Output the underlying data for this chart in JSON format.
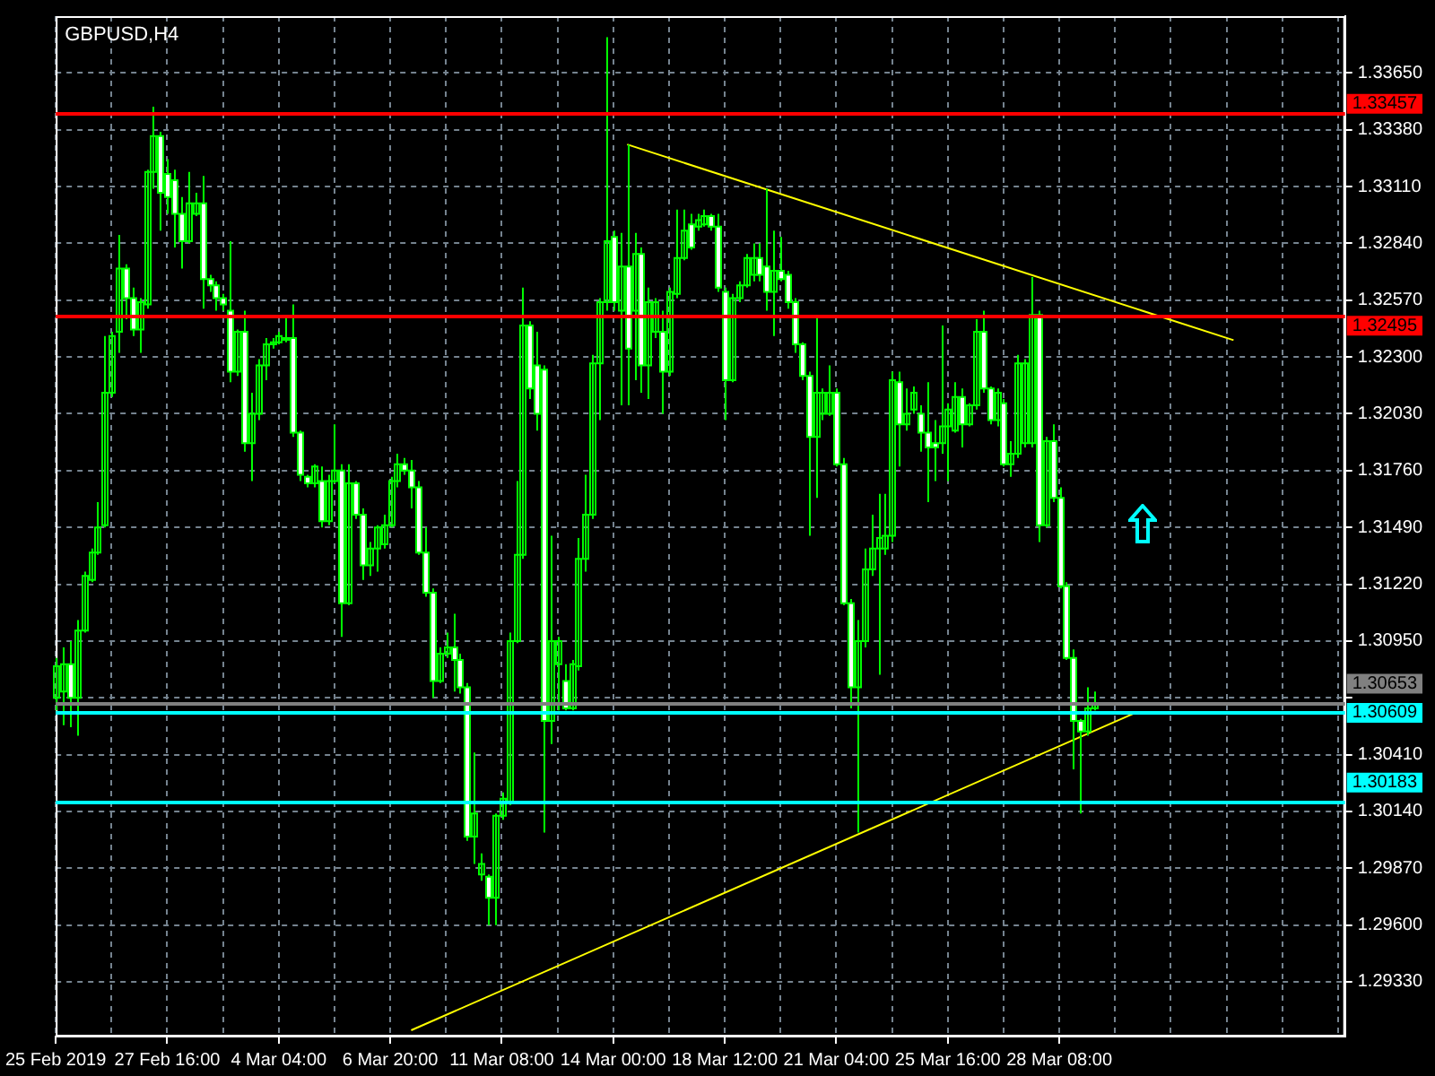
{
  "chart_data": {
    "type": "candlestick",
    "title": "GBPUSD,H4",
    "colors": [
      "#00ff00",
      "#00ff00",
      "#ffffff",
      "#00ff00",
      "#00ff00",
      "#00ff00",
      "#00ff00",
      "#00ff00",
      "#00ff00",
      "#00ff00",
      "#ffffff",
      "#ffffff",
      "#00ff00",
      "#00ff00",
      "#00ff00",
      "#ffffff",
      "#ffffff",
      "#ffffff",
      "#ffffff",
      "#00ff00",
      "#00ff00",
      "#ffffff",
      "#ffffff",
      "#ffffff",
      "#ffffff",
      "#ffffff",
      "#00ff00",
      "#ffffff",
      "#00ff00",
      "#00ff00",
      "#00ff00",
      "#00ff00",
      "#00ff00",
      "#00ff00",
      "#ffffff",
      "#ffffff",
      "#ffffff",
      "#00ff00",
      "#ffffff",
      "#00ff00",
      "#00ff00",
      "#ffffff",
      "#00ff00",
      "#ffffff",
      "#ffffff",
      "#00ff00",
      "#00ff00",
      "#00ff00",
      "#00ff00",
      "#00ff00",
      "#ffffff",
      "#ffffff",
      "#ffffff",
      "#ffffff",
      "#ffffff",
      "#00ff00",
      "#00ff00",
      "#ffffff",
      "#ffffff",
      "#ffffff",
      "#00ff00",
      "#00ff00",
      "#ffffff",
      "#00ff00",
      "#00ff00",
      "#00ff00",
      "#00ff00",
      "#00ff00",
      "#ffffff",
      "#ffffff",
      "#ffffff",
      "#00ff00",
      "#00ff00",
      "#ffffff",
      "#00ff00",
      "#00ff00",
      "#00ff00",
      "#00ff00",
      "#00ff00",
      "#00ff00",
      "#ffffff",
      "#00ff00",
      "#ffffff",
      "#00ff00",
      "#ffffff",
      "#00ff00",
      "#00ff00",
      "#ffffff",
      "#00ff00",
      "#00ff00",
      "#00ff00",
      "#ffffff",
      "#00ff00",
      "#00ff00",
      "#ffffff",
      "#ffffff",
      "#ffffff",
      "#00ff00",
      "#00ff00",
      "#00ff00",
      "#00ff00",
      "#ffffff",
      "#ffffff",
      "#00ff00",
      "#ffffff",
      "#ffffff",
      "#ffffff",
      "#ffffff",
      "#ffffff",
      "#00ff00",
      "#00ff00",
      "#00ff00",
      "#ffffff",
      "#ffffff",
      "#ffffff",
      "#00ff00",
      "#00ff00",
      "#00ff00",
      "#00ff00",
      "#00ff00",
      "#00ff00",
      "#ffffff",
      "#00ff00",
      "#00ff00",
      "#ffffff",
      "#ffffff",
      "#ffffff",
      "#00ff00",
      "#00ff00",
      "#00ff00",
      "#ffffff",
      "#00ff00",
      "#00ff00",
      "#ffffff",
      "#ffffff",
      "#00ff00",
      "#ffffff",
      "#00ff00",
      "#00ff00",
      "#00ff00",
      "#00ff00",
      "#ffffff",
      "#00ff00",
      "#ffffff",
      "#ffffff",
      "#ffffff",
      "#ffffff",
      "#ffffff",
      "#00ff00",
      "#00ff00",
      null,
      null,
      null,
      null,
      null,
      null,
      null,
      null,
      null,
      null,
      null,
      null,
      null,
      null,
      null,
      null,
      null,
      null,
      null,
      null,
      null,
      null,
      null,
      null,
      null,
      null,
      null,
      null,
      null,
      null,
      null,
      null,
      null,
      null,
      null,
      null
    ],
    "grid": true,
    "legend": false,
    "categories": [
      "25 Feb 2019",
      null,
      null,
      null,
      null,
      null,
      null,
      null,
      null,
      null,
      null,
      null,
      null,
      null,
      null,
      null,
      "27 Feb 16:00",
      null,
      null,
      null,
      null,
      null,
      null,
      null,
      null,
      null,
      null,
      null,
      null,
      null,
      null,
      null,
      "4 Mar 04:00",
      null,
      null,
      null,
      null,
      null,
      null,
      null,
      null,
      null,
      null,
      null,
      null,
      null,
      null,
      null,
      "6 Mar 20:00",
      null,
      null,
      null,
      null,
      null,
      null,
      null,
      null,
      null,
      null,
      null,
      null,
      null,
      null,
      null,
      "11 Mar 08:00",
      null,
      null,
      null,
      null,
      null,
      null,
      null,
      null,
      null,
      null,
      null,
      null,
      null,
      null,
      null,
      "14 Mar 00:00",
      null,
      null,
      null,
      null,
      null,
      null,
      null,
      null,
      null,
      null,
      null,
      null,
      null,
      null,
      null,
      "18 Mar 12:00",
      null,
      null,
      null,
      null,
      null,
      null,
      null,
      null,
      null,
      null,
      null,
      null,
      null,
      null,
      null,
      "21 Mar 04:00",
      null,
      null,
      null,
      null,
      null,
      null,
      null,
      null,
      null,
      null,
      null,
      null,
      null,
      null,
      null,
      "25 Mar 16:00",
      null,
      null,
      null,
      null,
      null,
      null,
      null,
      null,
      null,
      null,
      null,
      null,
      null,
      null,
      null,
      "28 Mar 08:00",
      null,
      null,
      null,
      null,
      null,
      null,
      null,
      null,
      null,
      null,
      null,
      null,
      null,
      null,
      null,
      null,
      null,
      null,
      null,
      null,
      null,
      null,
      null,
      null,
      null,
      null,
      null,
      null,
      null,
      null,
      null,
      null,
      null,
      null,
      null,
      null,
      null,
      null,
      null,
      null,
      null
    ],
    "ohlc": [
      [
        1.3068,
        1.3087,
        1.3062,
        1.3083
      ],
      [
        1.3071,
        1.3092,
        1.3055,
        1.3084
      ],
      [
        1.3084,
        1.3095,
        1.3054,
        1.3068
      ],
      [
        1.3068,
        1.3105,
        1.305,
        1.31
      ],
      [
        1.31,
        1.3128,
        1.3099,
        1.3126
      ],
      [
        1.3124,
        1.3139,
        1.3123,
        1.3137
      ],
      [
        1.3137,
        1.3161,
        1.3136,
        1.3149
      ],
      [
        1.315,
        1.324,
        1.3149,
        1.3213
      ],
      [
        1.3213,
        1.3242,
        1.3211,
        1.324
      ],
      [
        1.3242,
        1.3288,
        1.3232,
        1.3272
      ],
      [
        1.3272,
        1.3274,
        1.3248,
        1.3258
      ],
      [
        1.3258,
        1.3263,
        1.324,
        1.3243
      ],
      [
        1.3243,
        1.3258,
        1.3232,
        1.3256
      ],
      [
        1.3255,
        1.3319,
        1.3253,
        1.3318
      ],
      [
        1.3318,
        1.3349,
        1.331,
        1.3335
      ],
      [
        1.3335,
        1.3337,
        1.329,
        1.3308
      ],
      [
        1.3317,
        1.3324,
        1.3298,
        1.3306
      ],
      [
        1.3314,
        1.3319,
        1.3282,
        1.3298
      ],
      [
        1.3298,
        1.3306,
        1.3272,
        1.3285
      ],
      [
        1.3285,
        1.3318,
        1.3284,
        1.3303
      ],
      [
        1.3298,
        1.3308,
        1.3297,
        1.3303
      ],
      [
        1.3303,
        1.3316,
        1.3253,
        1.3267
      ],
      [
        1.3267,
        1.3269,
        1.3261,
        1.3264
      ],
      [
        1.3264,
        1.3266,
        1.3252,
        1.3258
      ],
      [
        1.3258,
        1.326,
        1.3252,
        1.3255
      ],
      [
        1.3252,
        1.3285,
        1.3218,
        1.3223
      ],
      [
        1.3223,
        1.3243,
        1.3221,
        1.3242
      ],
      [
        1.3242,
        1.3252,
        1.3185,
        1.3189
      ],
      [
        1.3189,
        1.3213,
        1.3171,
        1.3203
      ],
      [
        1.3203,
        1.3229,
        1.32,
        1.3226
      ],
      [
        1.3226,
        1.3239,
        1.3219,
        1.3236
      ],
      [
        1.3236,
        1.3239,
        1.3234,
        1.3237
      ],
      [
        1.3237,
        1.3242,
        1.3236,
        1.324
      ],
      [
        1.3239,
        1.325,
        1.3237,
        1.3239
      ],
      [
        1.3239,
        1.3255,
        1.3192,
        1.3194
      ],
      [
        1.3194,
        1.3195,
        1.3171,
        1.3174
      ],
      [
        1.3173,
        1.3174,
        1.3168,
        1.317
      ],
      [
        1.317,
        1.3179,
        1.3168,
        1.3178
      ],
      [
        1.3171,
        1.3178,
        1.3149,
        1.3152
      ],
      [
        1.3152,
        1.3174,
        1.315,
        1.3171
      ],
      [
        1.3171,
        1.3198,
        1.317,
        1.3176
      ],
      [
        1.3176,
        1.3179,
        1.3097,
        1.3113
      ],
      [
        1.3113,
        1.3179,
        1.3112,
        1.317
      ],
      [
        1.317,
        1.3171,
        1.3153,
        1.3155
      ],
      [
        1.3155,
        1.3158,
        1.3124,
        1.3131
      ],
      [
        1.3131,
        1.3142,
        1.3126,
        1.3139
      ],
      [
        1.3139,
        1.315,
        1.3128,
        1.3149
      ],
      [
        1.3141,
        1.3155,
        1.3139,
        1.315
      ],
      [
        1.315,
        1.3173,
        1.3149,
        1.3171
      ],
      [
        1.3171,
        1.3184,
        1.3168,
        1.3179
      ],
      [
        1.3179,
        1.3182,
        1.3174,
        1.3176
      ],
      [
        1.3176,
        1.3181,
        1.3158,
        1.3168
      ],
      [
        1.3168,
        1.3171,
        1.3136,
        1.3137
      ],
      [
        1.3137,
        1.3149,
        1.3116,
        1.3118
      ],
      [
        1.3118,
        1.312,
        1.3068,
        1.3076
      ],
      [
        1.3076,
        1.3092,
        1.3075,
        1.3089
      ],
      [
        1.3089,
        1.3099,
        1.3087,
        1.3092
      ],
      [
        1.3092,
        1.3108,
        1.3071,
        1.3086
      ],
      [
        1.3086,
        1.3089,
        1.307,
        1.3073
      ],
      [
        1.3073,
        1.3075,
        1.3,
        1.3002
      ],
      [
        1.3002,
        1.3042,
        1.2989,
        1.3013
      ],
      [
        1.2984,
        1.2994,
        1.2981,
        1.2989
      ],
      [
        1.2983,
        1.2984,
        1.296,
        1.2973
      ],
      [
        1.2973,
        1.3013,
        1.296,
        1.3012
      ],
      [
        1.3012,
        1.3023,
        1.301,
        1.302
      ],
      [
        1.3018,
        1.3099,
        1.3017,
        1.3095
      ],
      [
        1.3095,
        1.3171,
        1.3094,
        1.3136
      ],
      [
        1.3136,
        1.3263,
        1.3134,
        1.3245
      ],
      [
        1.3245,
        1.3247,
        1.321,
        1.3215
      ],
      [
        1.3226,
        1.3242,
        1.3195,
        1.3203
      ],
      [
        1.3224,
        1.3226,
        1.3004,
        1.3057
      ],
      [
        1.3057,
        1.3145,
        1.3046,
        1.3095
      ],
      [
        1.3084,
        1.3097,
        1.3062,
        1.3095
      ],
      [
        1.3076,
        1.3084,
        1.3062,
        1.3063
      ],
      [
        1.3063,
        1.3086,
        1.3062,
        1.3084
      ],
      [
        1.3083,
        1.3144,
        1.3081,
        1.3134
      ],
      [
        1.3134,
        1.3174,
        1.3128,
        1.3155
      ],
      [
        1.3155,
        1.3231,
        1.3153,
        1.3227
      ],
      [
        1.3227,
        1.3258,
        1.32,
        1.3256
      ],
      [
        1.3256,
        1.3382,
        1.3252,
        1.3285
      ],
      [
        1.3287,
        1.329,
        1.3252,
        1.3256
      ],
      [
        1.3252,
        1.3289,
        1.3207,
        1.3273
      ],
      [
        1.3273,
        1.3331,
        1.3207,
        1.3234
      ],
      [
        1.3252,
        1.3289,
        1.3219,
        1.3279
      ],
      [
        1.3279,
        1.3282,
        1.3213,
        1.3226
      ],
      [
        1.3226,
        1.3263,
        1.321,
        1.3256
      ],
      [
        1.3242,
        1.3258,
        1.3239,
        1.3256
      ],
      [
        1.3242,
        1.3252,
        1.3203,
        1.3223
      ],
      [
        1.3223,
        1.3263,
        1.3221,
        1.3261
      ],
      [
        1.326,
        1.33,
        1.3258,
        1.3277
      ],
      [
        1.3277,
        1.33,
        1.3276,
        1.329
      ],
      [
        1.3293,
        1.3298,
        1.3281,
        1.3282
      ],
      [
        1.3292,
        1.3298,
        1.329,
        1.3295
      ],
      [
        1.3293,
        1.33,
        1.3292,
        1.3297
      ],
      [
        1.3297,
        1.3298,
        1.329,
        1.3292
      ],
      [
        1.3292,
        1.3298,
        1.3261,
        1.3263
      ],
      [
        1.3261,
        1.3263,
        1.32,
        1.3219
      ],
      [
        1.3219,
        1.326,
        1.3218,
        1.3258
      ],
      [
        1.3258,
        1.3266,
        1.3256,
        1.3264
      ],
      [
        1.3264,
        1.3279,
        1.3263,
        1.3277
      ],
      [
        1.3269,
        1.3284,
        1.3266,
        1.3277
      ],
      [
        1.3277,
        1.3284,
        1.3266,
        1.3269
      ],
      [
        1.3273,
        1.331,
        1.3252,
        1.3261
      ],
      [
        1.3261,
        1.329,
        1.324,
        1.3271
      ],
      [
        1.3271,
        1.3287,
        1.3266,
        1.3267
      ],
      [
        1.3269,
        1.3271,
        1.3253,
        1.3256
      ],
      [
        1.3256,
        1.3258,
        1.3232,
        1.3236
      ],
      [
        1.3236,
        1.3237,
        1.3219,
        1.3221
      ],
      [
        1.3221,
        1.3223,
        1.3145,
        1.3192
      ],
      [
        1.3192,
        1.325,
        1.3163,
        1.3213
      ],
      [
        1.3203,
        1.3215,
        1.32,
        1.3213
      ],
      [
        1.3203,
        1.3226,
        1.3202,
        1.3213
      ],
      [
        1.3213,
        1.3215,
        1.3178,
        1.3179
      ],
      [
        1.3179,
        1.3182,
        1.3112,
        1.3113
      ],
      [
        1.3113,
        1.3115,
        1.3063,
        1.3073
      ],
      [
        1.3073,
        1.3105,
        1.3004,
        1.3095
      ],
      [
        1.3095,
        1.3139,
        1.3092,
        1.3129
      ],
      [
        1.3129,
        1.3155,
        1.3126,
        1.3139
      ],
      [
        1.3139,
        1.3165,
        1.3079,
        1.3144
      ],
      [
        1.3139,
        1.3165,
        1.3136,
        1.3145
      ],
      [
        1.3145,
        1.3223,
        1.3142,
        1.3219
      ],
      [
        1.3218,
        1.3223,
        1.3178,
        1.3198
      ],
      [
        1.3198,
        1.3215,
        1.3195,
        1.3203
      ],
      [
        1.3205,
        1.3216,
        1.3203,
        1.3213
      ],
      [
        1.3203,
        1.3207,
        1.3185,
        1.3194
      ],
      [
        1.3194,
        1.3218,
        1.3161,
        1.3187
      ],
      [
        1.3189,
        1.32,
        1.3171,
        1.3187
      ],
      [
        1.3189,
        1.3245,
        1.3184,
        1.3197
      ],
      [
        1.3197,
        1.3208,
        1.3171,
        1.3205
      ],
      [
        1.3195,
        1.3218,
        1.3194,
        1.3211
      ],
      [
        1.3211,
        1.3215,
        1.3187,
        1.3198
      ],
      [
        1.3198,
        1.3208,
        1.3197,
        1.3207
      ],
      [
        1.3207,
        1.3248,
        1.3205,
        1.3242
      ],
      [
        1.3242,
        1.3252,
        1.3213,
        1.3215
      ],
      [
        1.3215,
        1.3216,
        1.3198,
        1.32
      ],
      [
        1.32,
        1.3215,
        1.3197,
        1.3213
      ],
      [
        1.3208,
        1.321,
        1.3178,
        1.3179
      ],
      [
        1.3179,
        1.319,
        1.3173,
        1.3184
      ],
      [
        1.3184,
        1.3231,
        1.3182,
        1.3227
      ],
      [
        1.3189,
        1.3229,
        1.3187,
        1.3227
      ],
      [
        1.3189,
        1.3268,
        1.3187,
        1.325
      ],
      [
        1.325,
        1.3252,
        1.3142,
        1.315
      ],
      [
        1.315,
        1.3192,
        1.3149,
        1.319
      ],
      [
        1.319,
        1.3198,
        1.3161,
        1.3163
      ],
      [
        1.3163,
        1.3168,
        1.312,
        1.3121
      ],
      [
        1.3121,
        1.3123,
        1.3086,
        1.3087
      ],
      [
        1.3087,
        1.3091,
        1.3034,
        1.3057
      ],
      [
        1.3057,
        1.3058,
        1.3013,
        1.3052
      ],
      [
        1.3052,
        1.3073,
        1.305,
        1.3063
      ],
      [
        1.3063,
        1.3071,
        1.3062,
        1.30653
      ],
      null,
      null,
      null,
      null,
      null,
      null,
      null,
      null,
      null,
      null,
      null,
      null,
      null,
      null,
      null,
      null,
      null,
      null,
      null,
      null,
      null,
      null,
      null,
      null,
      null,
      null,
      null,
      null,
      null,
      null,
      null,
      null,
      null,
      null,
      null,
      null
    ],
    "series": [
      {
        "type": "line",
        "color": "#ffff00",
        "values": [
          null,
          null,
          null,
          null,
          null,
          null,
          null,
          null,
          null,
          null,
          null,
          null,
          null,
          null,
          null,
          null,
          null,
          null,
          null,
          null,
          null,
          null,
          null,
          null,
          null,
          null,
          null,
          null,
          null,
          null,
          null,
          null,
          null,
          null,
          null,
          null,
          null,
          null,
          null,
          null,
          null,
          null,
          null,
          null,
          null,
          null,
          null,
          null,
          null,
          null,
          null,
          null,
          null,
          null,
          null,
          null,
          null,
          null,
          null,
          null,
          null,
          null,
          null,
          null,
          null,
          null,
          null,
          null,
          null,
          null,
          null,
          null,
          null,
          null,
          null,
          null,
          null,
          null,
          null,
          null,
          null,
          null,
          1.3331,
          null,
          null,
          null,
          null,
          null,
          null,
          null,
          null,
          null,
          null,
          null,
          null,
          null,
          null,
          null,
          null,
          null,
          null,
          null,
          null,
          null,
          null,
          null,
          null,
          null,
          null,
          null,
          null,
          null,
          null,
          null,
          null,
          null,
          null,
          null,
          null,
          null,
          null,
          null,
          null,
          null,
          null,
          null,
          null,
          null,
          null,
          null,
          null,
          null,
          null,
          null,
          null,
          null,
          null,
          null,
          null,
          null,
          null,
          null,
          null,
          null,
          null,
          null,
          null,
          null,
          null,
          null,
          null,
          null,
          null,
          null,
          null,
          null,
          null,
          null,
          null,
          null,
          null,
          null,
          null,
          null,
          null,
          null,
          null,
          null,
          null,
          1.3238,
          null,
          null,
          null,
          null,
          null,
          null,
          null,
          null,
          null,
          null,
          null,
          null,
          null,
          null,
          null,
          null
        ]
      },
      {
        "type": "line",
        "color": "#ffff00",
        "values": [
          null,
          null,
          null,
          null,
          null,
          null,
          null,
          null,
          null,
          null,
          null,
          null,
          null,
          null,
          null,
          null,
          null,
          null,
          null,
          null,
          null,
          null,
          null,
          null,
          null,
          null,
          null,
          null,
          null,
          null,
          null,
          null,
          null,
          null,
          null,
          null,
          null,
          null,
          null,
          null,
          null,
          null,
          null,
          null,
          null,
          null,
          null,
          null,
          null,
          null,
          null,
          1.291,
          null,
          null,
          null,
          null,
          null,
          null,
          null,
          null,
          null,
          null,
          null,
          null,
          null,
          null,
          null,
          null,
          null,
          null,
          null,
          null,
          null,
          null,
          null,
          null,
          null,
          null,
          null,
          null,
          null,
          null,
          null,
          null,
          null,
          null,
          null,
          null,
          null,
          null,
          null,
          null,
          null,
          null,
          null,
          null,
          null,
          null,
          null,
          null,
          null,
          null,
          null,
          null,
          null,
          null,
          null,
          null,
          null,
          null,
          null,
          null,
          null,
          null,
          null,
          null,
          null,
          null,
          null,
          null,
          null,
          null,
          null,
          null,
          null,
          null,
          null,
          null,
          null,
          null,
          null,
          null,
          null,
          null,
          null,
          null,
          null,
          null,
          null,
          null,
          null,
          null,
          null,
          null,
          null,
          null,
          null,
          null,
          null,
          null,
          null,
          null,
          null,
          null,
          null,
          1.3061,
          null,
          null,
          null,
          null,
          null,
          null,
          null,
          null,
          null,
          null,
          null,
          null,
          null,
          null,
          null,
          null,
          null,
          null,
          null,
          null,
          null,
          null,
          null,
          null,
          null,
          null,
          null,
          null,
          null,
          null
        ]
      }
    ],
    "ref_lines": [
      {
        "axis": "y",
        "value": 1.33457,
        "label": "1.33457",
        "color": "#ff0000"
      },
      {
        "axis": "y",
        "value": 1.32495,
        "label": "1.32495",
        "color": "#ff0000"
      },
      {
        "axis": "y",
        "value": 1.30653,
        "label": "1.30653",
        "color": "#808080"
      },
      {
        "axis": "y",
        "value": 1.30609,
        "label": "1.30609",
        "color": "#00ffff"
      },
      {
        "axis": "y",
        "value": 1.30183,
        "label": "1.30183",
        "color": "#00ffff"
      }
    ],
    "ylim": [
      1.2907,
      1.3392
    ],
    "yticks": [
      {
        "value": 1.3365,
        "label": "1.33650"
      },
      {
        "value": 1.3338,
        "label": "1.33380"
      },
      {
        "value": 1.3311,
        "label": "1.33110"
      },
      {
        "value": 1.3284,
        "label": "1.32840"
      },
      {
        "value": 1.3257,
        "label": "1.32570"
      },
      {
        "value": 1.323,
        "label": "1.32300"
      },
      {
        "value": 1.3203,
        "label": "1.32030"
      },
      {
        "value": 1.3176,
        "label": "1.31760"
      },
      {
        "value": 1.3149,
        "label": "1.31490"
      },
      {
        "value": 1.3122,
        "label": "1.31220"
      },
      {
        "value": 1.3095,
        "label": "1.30950"
      },
      {
        "value": 1.3068,
        "label": null
      },
      {
        "value": 1.3041,
        "label": "1.30410"
      },
      {
        "value": 1.3014,
        "label": "1.30140"
      },
      {
        "value": 1.2987,
        "label": "1.29870"
      },
      {
        "value": 1.296,
        "label": "1.29600"
      },
      {
        "value": 1.2933,
        "label": "1.29330"
      }
    ]
  }
}
